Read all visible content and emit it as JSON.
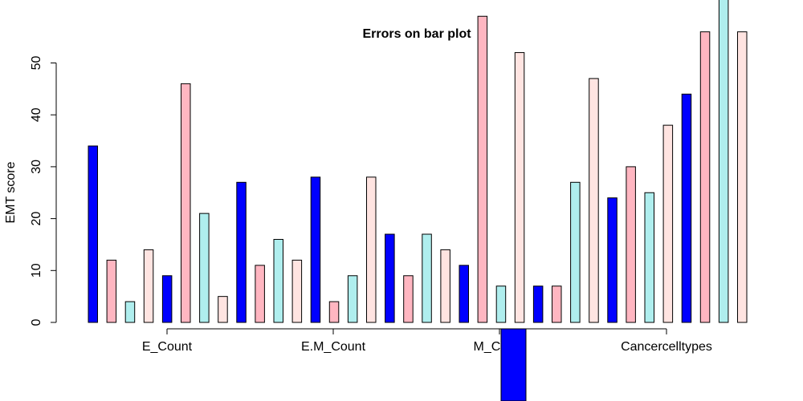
{
  "chart_data": {
    "type": "bar",
    "title": "Errors on bar plot",
    "xlabel": "",
    "ylabel": "EMT score",
    "ylim": [
      0,
      60
    ],
    "yticks": [
      0,
      10,
      20,
      30,
      40,
      50
    ],
    "x_tick_labels": [
      "E_Count",
      "E.M_Count",
      "M_Count",
      "Cancercelltypes"
    ],
    "grid": false,
    "colors": [
      "#0000ff",
      "#ffb6c1",
      "#afeeee",
      "#ffe4e1"
    ],
    "values": [
      34,
      12,
      4,
      14,
      9,
      46,
      21,
      5,
      27,
      11,
      16,
      12,
      28,
      4,
      9,
      28,
      17,
      9,
      17,
      14,
      11,
      59,
      7,
      52,
      7,
      7,
      27,
      47,
      24,
      30,
      25,
      38,
      44,
      56,
      63,
      56
    ],
    "extra_bar": {
      "value": -15,
      "color": "#0000ff",
      "note_x_index": 22
    }
  }
}
